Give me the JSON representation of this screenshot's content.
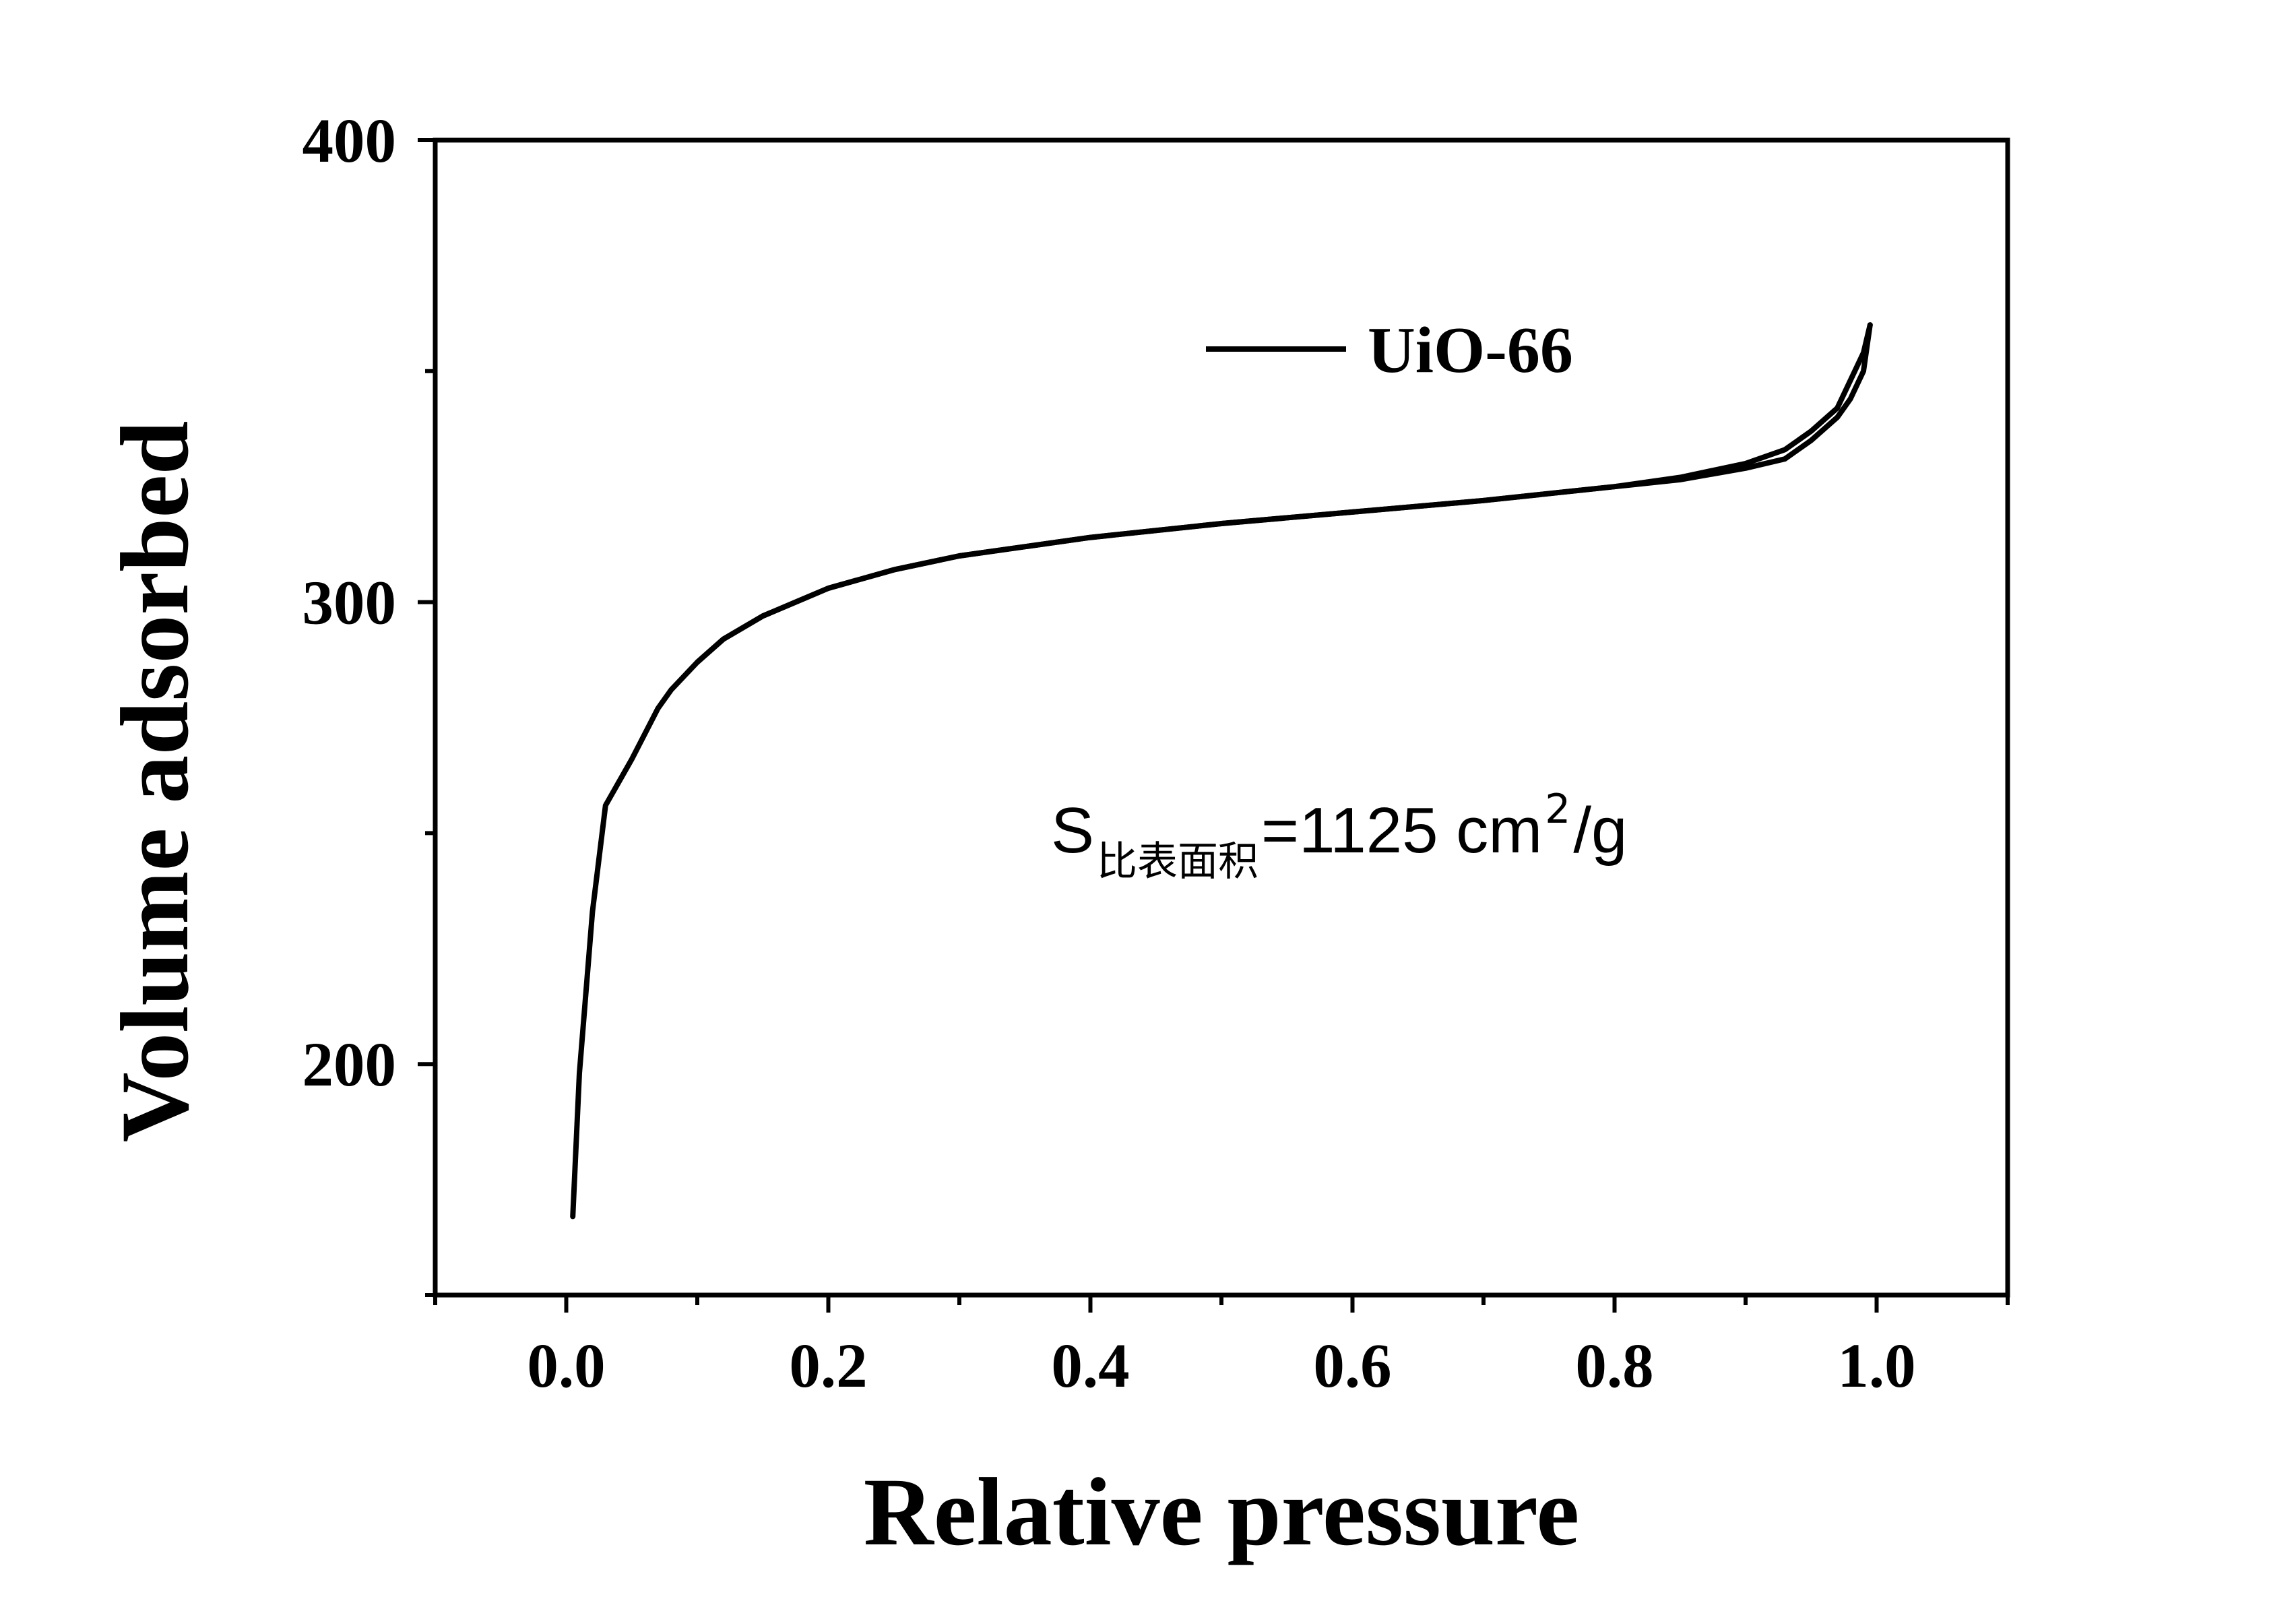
{
  "chart_data": {
    "type": "line",
    "xlabel": "Relative pressure",
    "ylabel": "Volume adsorbed",
    "xlim": [
      -0.1,
      1.1
    ],
    "ylim": [
      150,
      400
    ],
    "x_ticks": [
      0.0,
      0.2,
      0.4,
      0.6,
      0.8,
      1.0
    ],
    "x_tick_labels": [
      "0.0",
      "0.2",
      "0.4",
      "0.6",
      "0.8",
      "1.0"
    ],
    "x_minor_ticks": [
      -0.1,
      0.1,
      0.3,
      0.5,
      0.7,
      0.9,
      1.1
    ],
    "y_ticks": [
      200,
      300,
      400
    ],
    "y_tick_labels": [
      "200",
      "300",
      "400"
    ],
    "y_minor_ticks": [
      150,
      250,
      350
    ],
    "grid": false,
    "legend_position": "top-right",
    "series": [
      {
        "name": "UiO-66",
        "color": "#000000",
        "adsorption": {
          "x": [
            0.005,
            0.01,
            0.02,
            0.03,
            0.05,
            0.07,
            0.08,
            0.1,
            0.12,
            0.15,
            0.2,
            0.25,
            0.3,
            0.35,
            0.4,
            0.5,
            0.6,
            0.7,
            0.8,
            0.85,
            0.9,
            0.93,
            0.95,
            0.97,
            0.98,
            0.99,
            0.995
          ],
          "y": [
            167,
            198,
            233,
            256,
            266,
            277,
            281,
            287,
            292,
            297,
            303,
            307,
            310,
            312,
            314,
            317,
            319.5,
            322,
            325,
            327,
            330,
            333,
            337,
            342,
            348,
            354,
            360
          ]
        },
        "desorption": {
          "x": [
            0.995,
            0.99,
            0.98,
            0.97,
            0.95,
            0.93,
            0.9,
            0.85,
            0.8,
            0.7,
            0.6,
            0.5,
            0.4,
            0.3,
            0.25,
            0.2,
            0.15,
            0.12,
            0.1
          ],
          "y": [
            360,
            350,
            344,
            340,
            335,
            331,
            329,
            326.5,
            325,
            322,
            319.5,
            317,
            314,
            310,
            307,
            303,
            297,
            292,
            287
          ]
        }
      }
    ],
    "legend_label": "UiO-66",
    "annotation": {
      "main": "S",
      "subscript": "比表面积",
      "value": "=1125 cm",
      "superscript": "2",
      "unit": "/g"
    }
  }
}
